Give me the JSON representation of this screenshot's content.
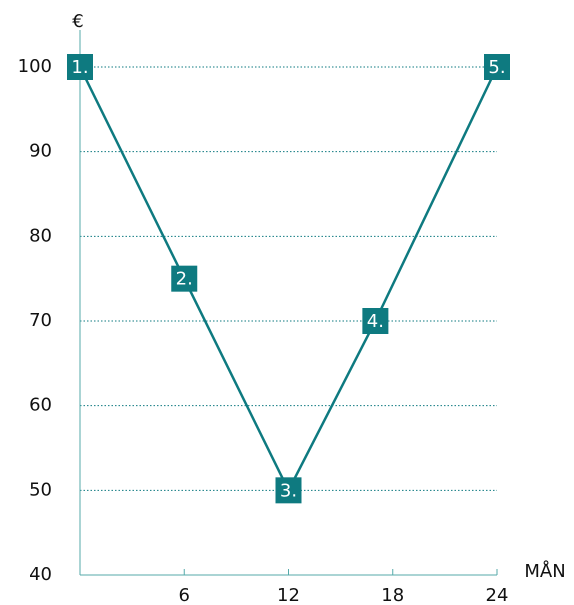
{
  "chart_data": {
    "type": "line",
    "x_label": "MÅN",
    "y_label": "€",
    "x": [
      0,
      6,
      12,
      17,
      24
    ],
    "values": [
      100,
      75,
      50,
      70,
      100
    ],
    "point_labels": [
      "1.",
      "2.",
      "3.",
      "4.",
      "5."
    ],
    "color": "#0e7a80",
    "xlim": [
      0,
      24
    ],
    "xticks": [
      6,
      12,
      18,
      24
    ],
    "ylim": [
      40,
      100
    ],
    "yticks": [
      40,
      50,
      60,
      70,
      80,
      90,
      100
    ],
    "grid": true
  }
}
